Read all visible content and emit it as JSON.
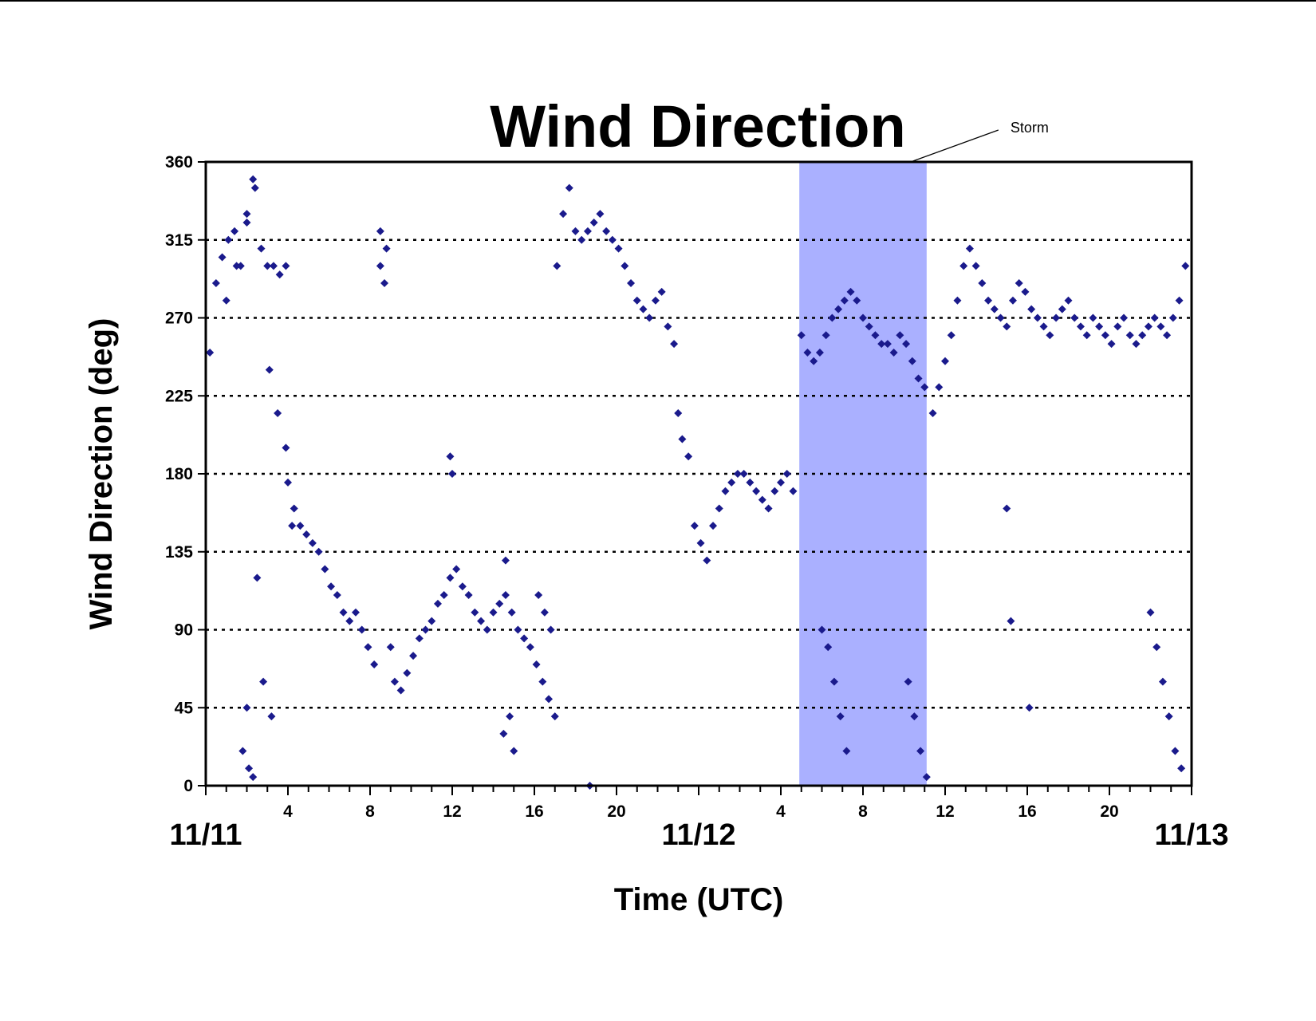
{
  "chart_data": {
    "type": "scatter",
    "title": "Wind Direction",
    "xlabel": "Time (UTC)",
    "ylabel": "Wind Direction (deg)",
    "ylim": [
      0,
      360
    ],
    "yticks": [
      0,
      45,
      90,
      135,
      180,
      225,
      270,
      315,
      360
    ],
    "xlim_hours": [
      0,
      48
    ],
    "xtick_labels": [
      {
        "hour": 4,
        "label": "4"
      },
      {
        "hour": 8,
        "label": "8"
      },
      {
        "hour": 12,
        "label": "12"
      },
      {
        "hour": 16,
        "label": "16"
      },
      {
        "hour": 20,
        "label": "20"
      },
      {
        "hour": 28,
        "label": "4"
      },
      {
        "hour": 32,
        "label": "8"
      },
      {
        "hour": 36,
        "label": "12"
      },
      {
        "hour": 40,
        "label": "16"
      },
      {
        "hour": 44,
        "label": "20"
      }
    ],
    "date_labels": [
      {
        "hour": 0,
        "label": "11/11"
      },
      {
        "hour": 24,
        "label": "11/12"
      },
      {
        "hour": 48,
        "label": "11/13"
      }
    ],
    "gridlines": "horizontal dotted",
    "marker_color": "#1a1a8c",
    "shaded_region": {
      "label": "Storm",
      "start_hour": 28.9,
      "end_hour": 35.1,
      "color": "#aab0ff"
    },
    "series": [
      {
        "x_hours": [
          0.2,
          0.5,
          0.8,
          1.1,
          1.4,
          1.7,
          2.0,
          2.3,
          1.0,
          1.5,
          2.0,
          2.4,
          2.7,
          3.0,
          3.3,
          3.6,
          3.9,
          3.1,
          3.5,
          3.9,
          4.2,
          2.5,
          2.8,
          3.2,
          1.8,
          2.1,
          2.3,
          2.0,
          4.0,
          4.3,
          4.6,
          4.9,
          5.2,
          5.5,
          5.8,
          6.1,
          6.4,
          6.7,
          7.0,
          7.3,
          7.6,
          7.9,
          8.2,
          8.5,
          8.8,
          8.5,
          8.7,
          9.0,
          9.2,
          9.5,
          9.8,
          10.1,
          10.4,
          10.7,
          11.0,
          11.3,
          11.6,
          11.9,
          12.2,
          12.5,
          12.8,
          13.1,
          13.4,
          13.7,
          14.0,
          14.3,
          14.6,
          14.9,
          15.2,
          15.5,
          15.8,
          16.1,
          16.4,
          16.7,
          17.0,
          14.5,
          14.8,
          15.0,
          16.2,
          16.5,
          16.8,
          11.9,
          12.0,
          14.6,
          17.1,
          17.4,
          17.7,
          18.0,
          18.3,
          18.6,
          18.9,
          19.2,
          19.5,
          19.8,
          20.1,
          20.4,
          20.7,
          21.0,
          21.3,
          21.6,
          21.9,
          22.2,
          22.5,
          22.8,
          18.7,
          23.0,
          23.2,
          23.5,
          23.8,
          24.1,
          24.4,
          24.7,
          25.0,
          25.3,
          25.6,
          25.9,
          26.2,
          26.5,
          26.8,
          27.1,
          27.4,
          27.7,
          28.0,
          28.3,
          28.6,
          29.0,
          29.3,
          29.6,
          29.9,
          30.2,
          30.5,
          30.8,
          31.1,
          31.4,
          31.7,
          32.0,
          32.3,
          32.6,
          32.9,
          33.2,
          33.5,
          33.8,
          34.1,
          34.4,
          34.7,
          35.0,
          30.0,
          30.3,
          30.6,
          30.9,
          31.2,
          34.2,
          34.5,
          34.8,
          35.1,
          35.4,
          35.7,
          36.0,
          36.3,
          36.6,
          36.9,
          37.2,
          37.5,
          37.8,
          38.1,
          38.4,
          38.7,
          39.0,
          39.3,
          39.6,
          39.9,
          40.2,
          40.5,
          40.8,
          41.1,
          41.4,
          41.7,
          42.0,
          42.3,
          42.6,
          42.9,
          43.2,
          43.5,
          43.8,
          44.1,
          44.4,
          44.7,
          45.0,
          45.3,
          45.6,
          45.9,
          46.2,
          46.5,
          46.8,
          47.1,
          47.4,
          47.7,
          46.0,
          46.3,
          46.6,
          46.9,
          47.2,
          47.5,
          39.0,
          39.2,
          40.1
        ],
        "y": [
          250,
          290,
          305,
          315,
          320,
          300,
          330,
          350,
          280,
          300,
          325,
          345,
          310,
          300,
          300,
          295,
          300,
          240,
          215,
          195,
          150,
          120,
          60,
          40,
          20,
          10,
          5,
          45,
          175,
          160,
          150,
          145,
          140,
          135,
          125,
          115,
          110,
          100,
          95,
          100,
          90,
          80,
          70,
          300,
          310,
          320,
          290,
          80,
          60,
          55,
          65,
          75,
          85,
          90,
          95,
          105,
          110,
          120,
          125,
          115,
          110,
          100,
          95,
          90,
          100,
          105,
          110,
          100,
          90,
          85,
          80,
          70,
          60,
          50,
          40,
          30,
          40,
          20,
          110,
          100,
          90,
          190,
          180,
          130,
          300,
          330,
          345,
          320,
          315,
          320,
          325,
          330,
          320,
          315,
          310,
          300,
          290,
          280,
          275,
          270,
          280,
          285,
          265,
          255,
          0,
          215,
          200,
          190,
          150,
          140,
          130,
          150,
          160,
          170,
          175,
          180,
          180,
          175,
          170,
          165,
          160,
          170,
          175,
          180,
          170,
          260,
          250,
          245,
          250,
          260,
          270,
          275,
          280,
          285,
          280,
          270,
          265,
          260,
          255,
          255,
          250,
          260,
          255,
          245,
          235,
          230,
          90,
          80,
          60,
          40,
          20,
          60,
          40,
          20,
          5,
          215,
          230,
          245,
          260,
          280,
          300,
          310,
          300,
          290,
          280,
          275,
          270,
          265,
          280,
          290,
          285,
          275,
          270,
          265,
          260,
          270,
          275,
          280,
          270,
          265,
          260,
          270,
          265,
          260,
          255,
          265,
          270,
          260,
          255,
          260,
          265,
          270,
          265,
          260,
          270,
          280,
          300,
          100,
          80,
          60,
          40,
          20,
          10,
          160,
          95,
          45
        ]
      }
    ]
  }
}
